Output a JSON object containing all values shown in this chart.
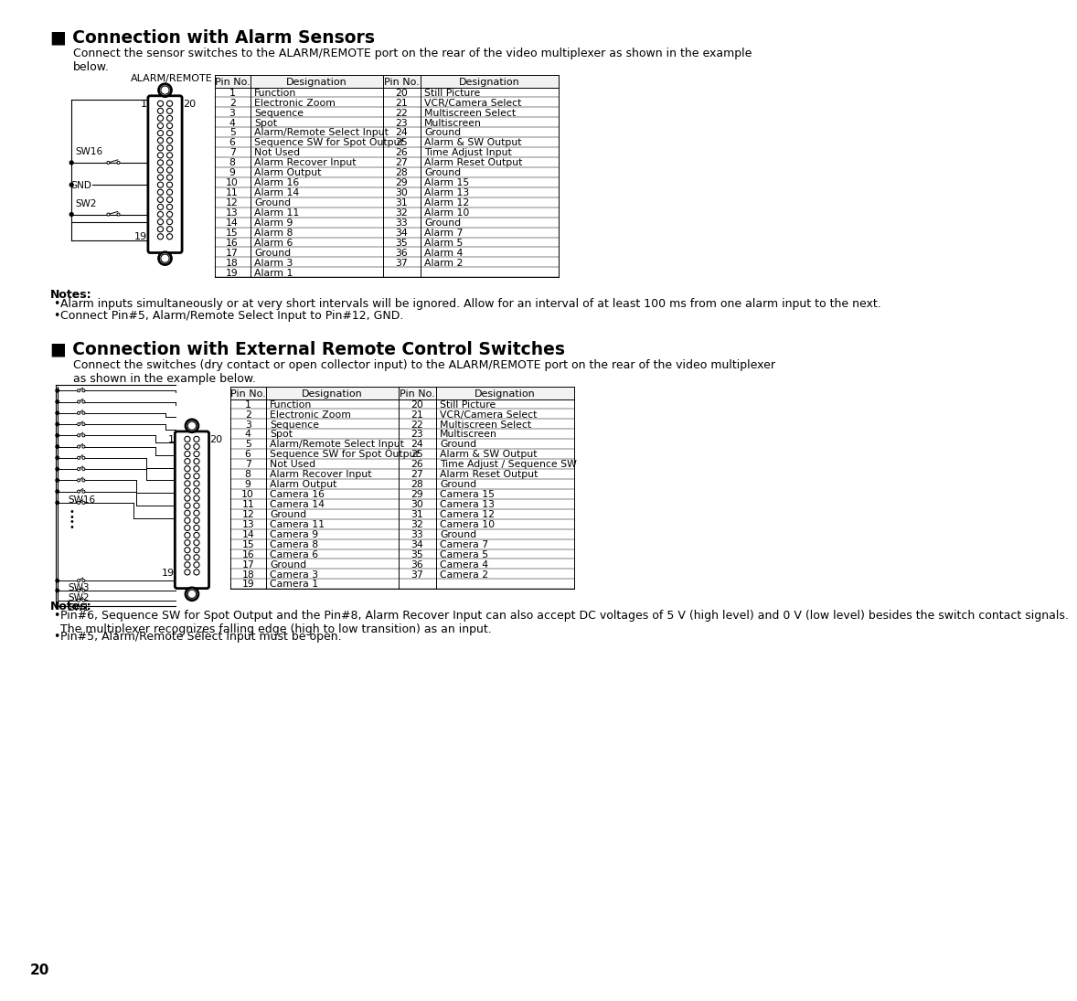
{
  "page_num": "20",
  "section1_title": "■ Connection with Alarm Sensors",
  "section1_desc": "Connect the sensor switches to the ALARM/REMOTE port on the rear of the video multiplexer as shown in the example\nbelow.",
  "section1_connector_label": "ALARM/REMOTE",
  "table1_headers": [
    "Pin No.",
    "Designation",
    "Pin No.",
    "Designation"
  ],
  "table1_left": [
    [
      "1",
      "Function"
    ],
    [
      "2",
      "Electronic Zoom"
    ],
    [
      "3",
      "Sequence"
    ],
    [
      "4",
      "Spot"
    ],
    [
      "5",
      "Alarm/Remote Select Input"
    ],
    [
      "6",
      "Sequence SW for Spot Output"
    ],
    [
      "7",
      "Not Used"
    ],
    [
      "8",
      "Alarm Recover Input"
    ],
    [
      "9",
      "Alarm Output"
    ],
    [
      "10",
      "Alarm 16"
    ],
    [
      "11",
      "Alarm 14"
    ],
    [
      "12",
      "Ground"
    ],
    [
      "13",
      "Alarm 11"
    ],
    [
      "14",
      "Alarm 9"
    ],
    [
      "15",
      "Alarm 8"
    ],
    [
      "16",
      "Alarm 6"
    ],
    [
      "17",
      "Ground"
    ],
    [
      "18",
      "Alarm 3"
    ],
    [
      "19",
      "Alarm 1"
    ]
  ],
  "table1_right": [
    [
      "20",
      "Still Picture"
    ],
    [
      "21",
      "VCR/Camera Select"
    ],
    [
      "22",
      "Multiscreen Select"
    ],
    [
      "23",
      "Multiscreen"
    ],
    [
      "24",
      "Ground"
    ],
    [
      "25",
      "Alarm & SW Output"
    ],
    [
      "26",
      "Time Adjust Input"
    ],
    [
      "27",
      "Alarm Reset Output"
    ],
    [
      "28",
      "Ground"
    ],
    [
      "29",
      "Alarm 15"
    ],
    [
      "30",
      "Alarm 13"
    ],
    [
      "31",
      "Alarm 12"
    ],
    [
      "32",
      "Alarm 10"
    ],
    [
      "33",
      "Ground"
    ],
    [
      "34",
      "Alarm 7"
    ],
    [
      "35",
      "Alarm 5"
    ],
    [
      "36",
      "Alarm 4"
    ],
    [
      "37",
      "Alarm 2"
    ]
  ],
  "section1_notes_title": "Notes:",
  "section1_notes": [
    "Alarm inputs simultaneously or at very short intervals will be ignored. Allow for an interval of at least 100 ms from one alarm input to the next.",
    "Connect Pin#5, Alarm/Remote Select Input to Pin#12, GND."
  ],
  "section2_title": "■ Connection with External Remote Control Switches",
  "section2_desc": "Connect the switches (dry contact or open collector input) to the ALARM/REMOTE port on the rear of the video multiplexer\nas shown in the example below.",
  "table2_headers": [
    "Pin No.",
    "Designation",
    "Pin No.",
    "Designation"
  ],
  "table2_left": [
    [
      "1",
      "Function"
    ],
    [
      "2",
      "Electronic Zoom"
    ],
    [
      "3",
      "Sequence"
    ],
    [
      "4",
      "Spot"
    ],
    [
      "5",
      "Alarm/Remote Select Input"
    ],
    [
      "6",
      "Sequence SW for Spot Output"
    ],
    [
      "7",
      "Not Used"
    ],
    [
      "8",
      "Alarm Recover Input"
    ],
    [
      "9",
      "Alarm Output"
    ],
    [
      "10",
      "Camera 16"
    ],
    [
      "11",
      "Camera 14"
    ],
    [
      "12",
      "Ground"
    ],
    [
      "13",
      "Camera 11"
    ],
    [
      "14",
      "Camera 9"
    ],
    [
      "15",
      "Camera 8"
    ],
    [
      "16",
      "Camera 6"
    ],
    [
      "17",
      "Ground"
    ],
    [
      "18",
      "Camera 3"
    ],
    [
      "19",
      "Camera 1"
    ]
  ],
  "table2_right": [
    [
      "20",
      "Still Picture"
    ],
    [
      "21",
      "VCR/Camera Select"
    ],
    [
      "22",
      "Multiscreen Select"
    ],
    [
      "23",
      "Multiscreen"
    ],
    [
      "24",
      "Ground"
    ],
    [
      "25",
      "Alarm & SW Output"
    ],
    [
      "26",
      "Time Adjust / Sequence SW"
    ],
    [
      "27",
      "Alarm Reset Output"
    ],
    [
      "28",
      "Ground"
    ],
    [
      "29",
      "Camera 15"
    ],
    [
      "30",
      "Camera 13"
    ],
    [
      "31",
      "Camera 12"
    ],
    [
      "32",
      "Camera 10"
    ],
    [
      "33",
      "Ground"
    ],
    [
      "34",
      "Camera 7"
    ],
    [
      "35",
      "Camera 5"
    ],
    [
      "36",
      "Camera 4"
    ],
    [
      "37",
      "Camera 2"
    ]
  ],
  "section2_notes_title": "Notes:",
  "section2_notes": [
    "Pin#6, Sequence SW for Spot Output and the Pin#8, Alarm Recover Input can also accept DC voltages of 5 V (high level) and 0 V (low level) besides the switch contact signals.\nThe multiplexer recognizes falling edge (high to low transition) as an input.",
    "Pin#5, Alarm/Remote Select Input must be open."
  ],
  "bg_color": "#ffffff"
}
